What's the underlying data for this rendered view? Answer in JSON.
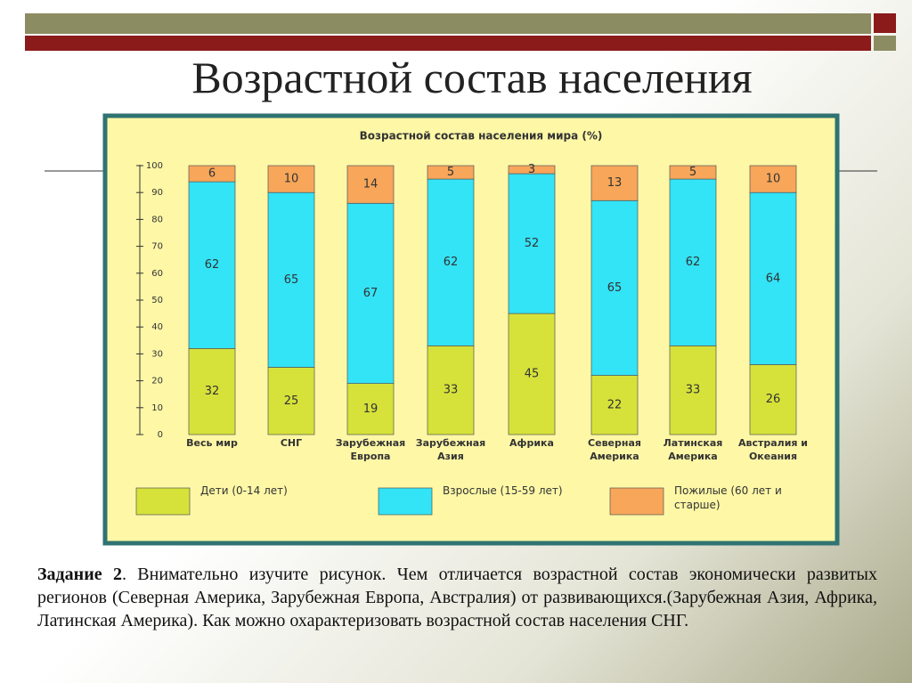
{
  "slide": {
    "title": "Возрастной состав населения",
    "task_label": "Задание 2",
    "task_text": ". Внимательно изучите рисунок. Чем отличается возрастной состав экономически развитых регионов (Северная Америка, Зарубежная Европа, Австралия) от развивающихся.(Зарубежная Азия, Африка, Латинская Америка). Как можно охарактеризовать возрастной состав населения СНГ."
  },
  "chart_data": {
    "type": "bar",
    "stacked": true,
    "title": "Возрастной состав населения мира (%)",
    "categories": [
      "Весь мир",
      "СНГ",
      "Зарубежная Европа",
      "Зарубежная Азия",
      "Африка",
      "Северная Америка",
      "Латинская Америка",
      "Австралия и Океания"
    ],
    "series": [
      {
        "name": "Дети (0-14 лет)",
        "color": "#d6e23a",
        "values": [
          32,
          25,
          19,
          33,
          45,
          22,
          33,
          26
        ]
      },
      {
        "name": "Взрослые (15-59 лет)",
        "color": "#33e3f6",
        "values": [
          62,
          65,
          67,
          62,
          52,
          65,
          62,
          64
        ]
      },
      {
        "name": "Пожилые (60 лет и старше)",
        "color": "#f7a65a",
        "values": [
          6,
          10,
          14,
          5,
          3,
          13,
          5,
          10
        ]
      }
    ],
    "ylim": [
      0,
      100
    ],
    "yticks": [
      0,
      10,
      20,
      30,
      40,
      50,
      60,
      70,
      80,
      90,
      100
    ]
  }
}
